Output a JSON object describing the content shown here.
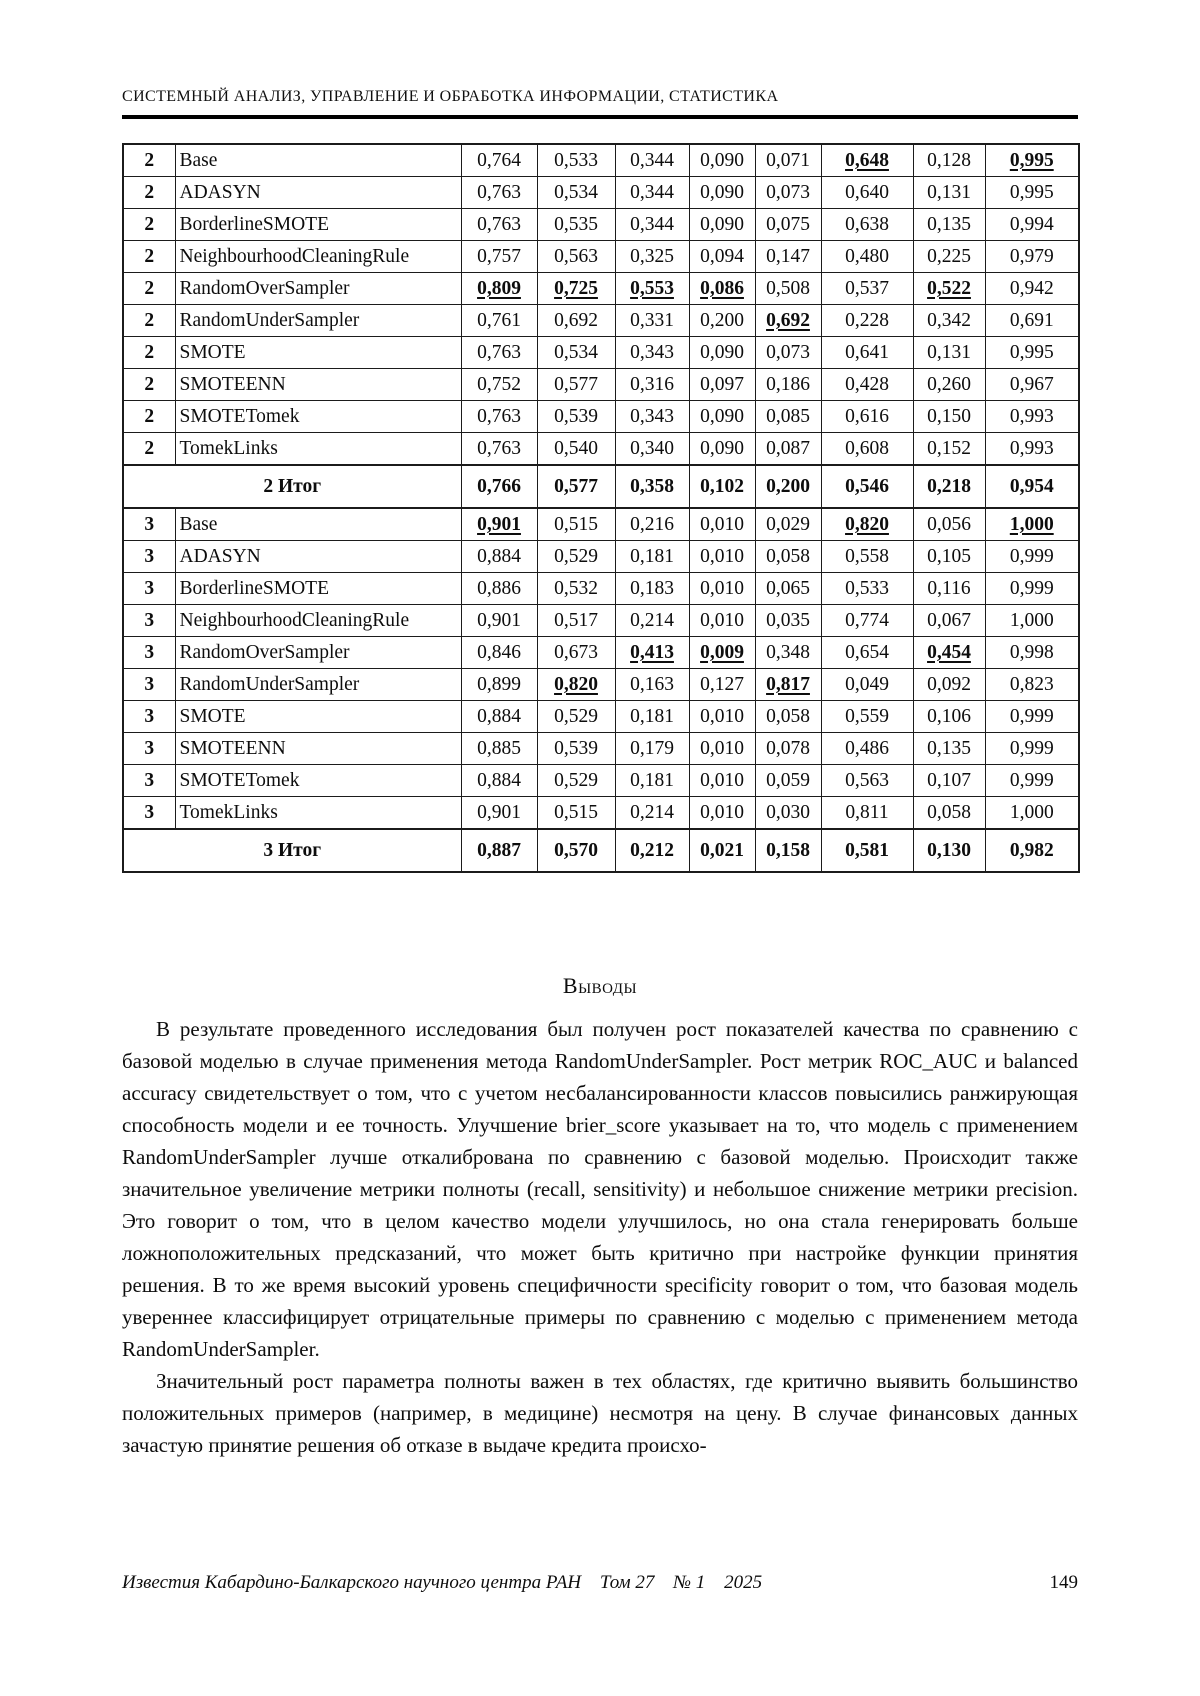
{
  "header": {
    "running_head": "СИСТЕМНЫЙ АНАЛИЗ, УПРАВЛЕНИЕ И ОБРАБОТКА ИНФОРМАЦИИ, СТАТИСТИКА"
  },
  "table": {
    "rows": [
      {
        "num": "2",
        "method": "Base",
        "values": [
          "0,764",
          "0,533",
          "0,344",
          "0,090",
          "0,071",
          "0,648",
          "0,128",
          "0,995"
        ],
        "marks": [
          0,
          0,
          0,
          0,
          0,
          1,
          0,
          1
        ]
      },
      {
        "num": "2",
        "method": "ADASYN",
        "values": [
          "0,763",
          "0,534",
          "0,344",
          "0,090",
          "0,073",
          "0,640",
          "0,131",
          "0,995"
        ],
        "marks": [
          0,
          0,
          0,
          0,
          0,
          0,
          0,
          0
        ]
      },
      {
        "num": "2",
        "method": "BorderlineSMOTE",
        "values": [
          "0,763",
          "0,535",
          "0,344",
          "0,090",
          "0,075",
          "0,638",
          "0,135",
          "0,994"
        ],
        "marks": [
          0,
          0,
          0,
          0,
          0,
          0,
          0,
          0
        ]
      },
      {
        "num": "2",
        "method": "NeighbourhoodCleaningRule",
        "values": [
          "0,757",
          "0,563",
          "0,325",
          "0,094",
          "0,147",
          "0,480",
          "0,225",
          "0,979"
        ],
        "marks": [
          0,
          0,
          0,
          0,
          0,
          0,
          0,
          0
        ]
      },
      {
        "num": "2",
        "method": "RandomOverSampler",
        "values": [
          "0,809",
          "0,725",
          "0,553",
          "0,086",
          "0,508",
          "0,537",
          "0,522",
          "0,942"
        ],
        "marks": [
          1,
          1,
          1,
          1,
          0,
          0,
          1,
          0
        ]
      },
      {
        "num": "2",
        "method": "RandomUnderSampler",
        "values": [
          "0,761",
          "0,692",
          "0,331",
          "0,200",
          "0,692",
          "0,228",
          "0,342",
          "0,691"
        ],
        "marks": [
          0,
          0,
          0,
          0,
          1,
          0,
          0,
          0
        ]
      },
      {
        "num": "2",
        "method": "SMOTE",
        "values": [
          "0,763",
          "0,534",
          "0,343",
          "0,090",
          "0,073",
          "0,641",
          "0,131",
          "0,995"
        ],
        "marks": [
          0,
          0,
          0,
          0,
          0,
          0,
          0,
          0
        ]
      },
      {
        "num": "2",
        "method": "SMOTEENN",
        "values": [
          "0,752",
          "0,577",
          "0,316",
          "0,097",
          "0,186",
          "0,428",
          "0,260",
          "0,967"
        ],
        "marks": [
          0,
          0,
          0,
          0,
          0,
          0,
          0,
          0
        ]
      },
      {
        "num": "2",
        "method": "SMOTETomek",
        "values": [
          "0,763",
          "0,539",
          "0,343",
          "0,090",
          "0,085",
          "0,616",
          "0,150",
          "0,993"
        ],
        "marks": [
          0,
          0,
          0,
          0,
          0,
          0,
          0,
          0
        ]
      },
      {
        "num": "2",
        "method": "TomekLinks",
        "values": [
          "0,763",
          "0,540",
          "0,340",
          "0,090",
          "0,087",
          "0,608",
          "0,152",
          "0,993"
        ],
        "marks": [
          0,
          0,
          0,
          0,
          0,
          0,
          0,
          0
        ]
      },
      {
        "total": "2 Итог",
        "values": [
          "0,766",
          "0,577",
          "0,358",
          "0,102",
          "0,200",
          "0,546",
          "0,218",
          "0,954"
        ]
      },
      {
        "num": "3",
        "method": "Base",
        "values": [
          "0,901",
          "0,515",
          "0,216",
          "0,010",
          "0,029",
          "0,820",
          "0,056",
          "1,000"
        ],
        "marks": [
          1,
          0,
          0,
          0,
          0,
          1,
          0,
          1
        ]
      },
      {
        "num": "3",
        "method": "ADASYN",
        "values": [
          "0,884",
          "0,529",
          "0,181",
          "0,010",
          "0,058",
          "0,558",
          "0,105",
          "0,999"
        ],
        "marks": [
          0,
          0,
          0,
          0,
          0,
          0,
          0,
          0
        ]
      },
      {
        "num": "3",
        "method": "BorderlineSMOTE",
        "values": [
          "0,886",
          "0,532",
          "0,183",
          "0,010",
          "0,065",
          "0,533",
          "0,116",
          "0,999"
        ],
        "marks": [
          0,
          0,
          0,
          0,
          0,
          0,
          0,
          0
        ]
      },
      {
        "num": "3",
        "method": "NeighbourhoodCleaningRule",
        "values": [
          "0,901",
          "0,517",
          "0,214",
          "0,010",
          "0,035",
          "0,774",
          "0,067",
          "1,000"
        ],
        "marks": [
          0,
          0,
          0,
          0,
          0,
          0,
          0,
          0
        ]
      },
      {
        "num": "3",
        "method": "RandomOverSampler",
        "values": [
          "0,846",
          "0,673",
          "0,413",
          "0,009",
          "0,348",
          "0,654",
          "0,454",
          "0,998"
        ],
        "marks": [
          0,
          0,
          1,
          1,
          0,
          0,
          1,
          0
        ]
      },
      {
        "num": "3",
        "method": "RandomUnderSampler",
        "values": [
          "0,899",
          "0,820",
          "0,163",
          "0,127",
          "0,817",
          "0,049",
          "0,092",
          "0,823"
        ],
        "marks": [
          0,
          1,
          0,
          0,
          1,
          0,
          0,
          0
        ]
      },
      {
        "num": "3",
        "method": "SMOTE",
        "values": [
          "0,884",
          "0,529",
          "0,181",
          "0,010",
          "0,058",
          "0,559",
          "0,106",
          "0,999"
        ],
        "marks": [
          0,
          0,
          0,
          0,
          0,
          0,
          0,
          0
        ]
      },
      {
        "num": "3",
        "method": "SMOTEENN",
        "values": [
          "0,885",
          "0,539",
          "0,179",
          "0,010",
          "0,078",
          "0,486",
          "0,135",
          "0,999"
        ],
        "marks": [
          0,
          0,
          0,
          0,
          0,
          0,
          0,
          0
        ]
      },
      {
        "num": "3",
        "method": "SMOTETomek",
        "values": [
          "0,884",
          "0,529",
          "0,181",
          "0,010",
          "0,059",
          "0,563",
          "0,107",
          "0,999"
        ],
        "marks": [
          0,
          0,
          0,
          0,
          0,
          0,
          0,
          0
        ]
      },
      {
        "num": "3",
        "method": "TomekLinks",
        "values": [
          "0,901",
          "0,515",
          "0,214",
          "0,010",
          "0,030",
          "0,811",
          "0,058",
          "1,000"
        ],
        "marks": [
          0,
          0,
          0,
          0,
          0,
          0,
          0,
          0
        ]
      },
      {
        "total": "3 Итог",
        "values": [
          "0,887",
          "0,570",
          "0,212",
          "0,021",
          "0,158",
          "0,581",
          "0,130",
          "0,982"
        ]
      }
    ]
  },
  "conclusions": {
    "heading": "Выводы",
    "paragraphs": [
      "В результате проведенного исследования был получен рост показателей качества по сравнению с базовой моделью в случае применения метода RandomUnderSampler. Рост метрик ROC_AUC и balanced accuracy свидетельствует о том, что с учетом несбалансированности классов повысились ранжирующая способность модели и ее точность. Улучшение brier_score указывает на то, что модель с применением RandomUnderSampler лучше откалибрована по сравнению с базовой моделью. Происходит также значительное увеличение метрики полноты (recall, sensitivity) и небольшое снижение метрики precision. Это говорит о том, что в целом качество модели улучшилось, но она стала генерировать больше ложноположительных предсказаний, что может быть критично при настройке функции принятия решения. В то же время высокий уровень специфичности specificity говорит о том, что базовая модель увереннее классифицирует отрицательные примеры по сравнению с моделью с применением метода RandomUnderSampler.",
      "Значительный рост параметра полноты важен в тех областях, где критично выявить большинство положительных примеров (например, в медицине) несмотря на цену. В случае финансовых данных зачастую принятие решения об отказе в выдаче кредита происхо-"
    ]
  },
  "footer": {
    "journal": "Известия Кабардино-Балкарского научного центра РАН",
    "volume": "Том 27",
    "issue": "№ 1",
    "year": "2025",
    "page_number": "149"
  }
}
